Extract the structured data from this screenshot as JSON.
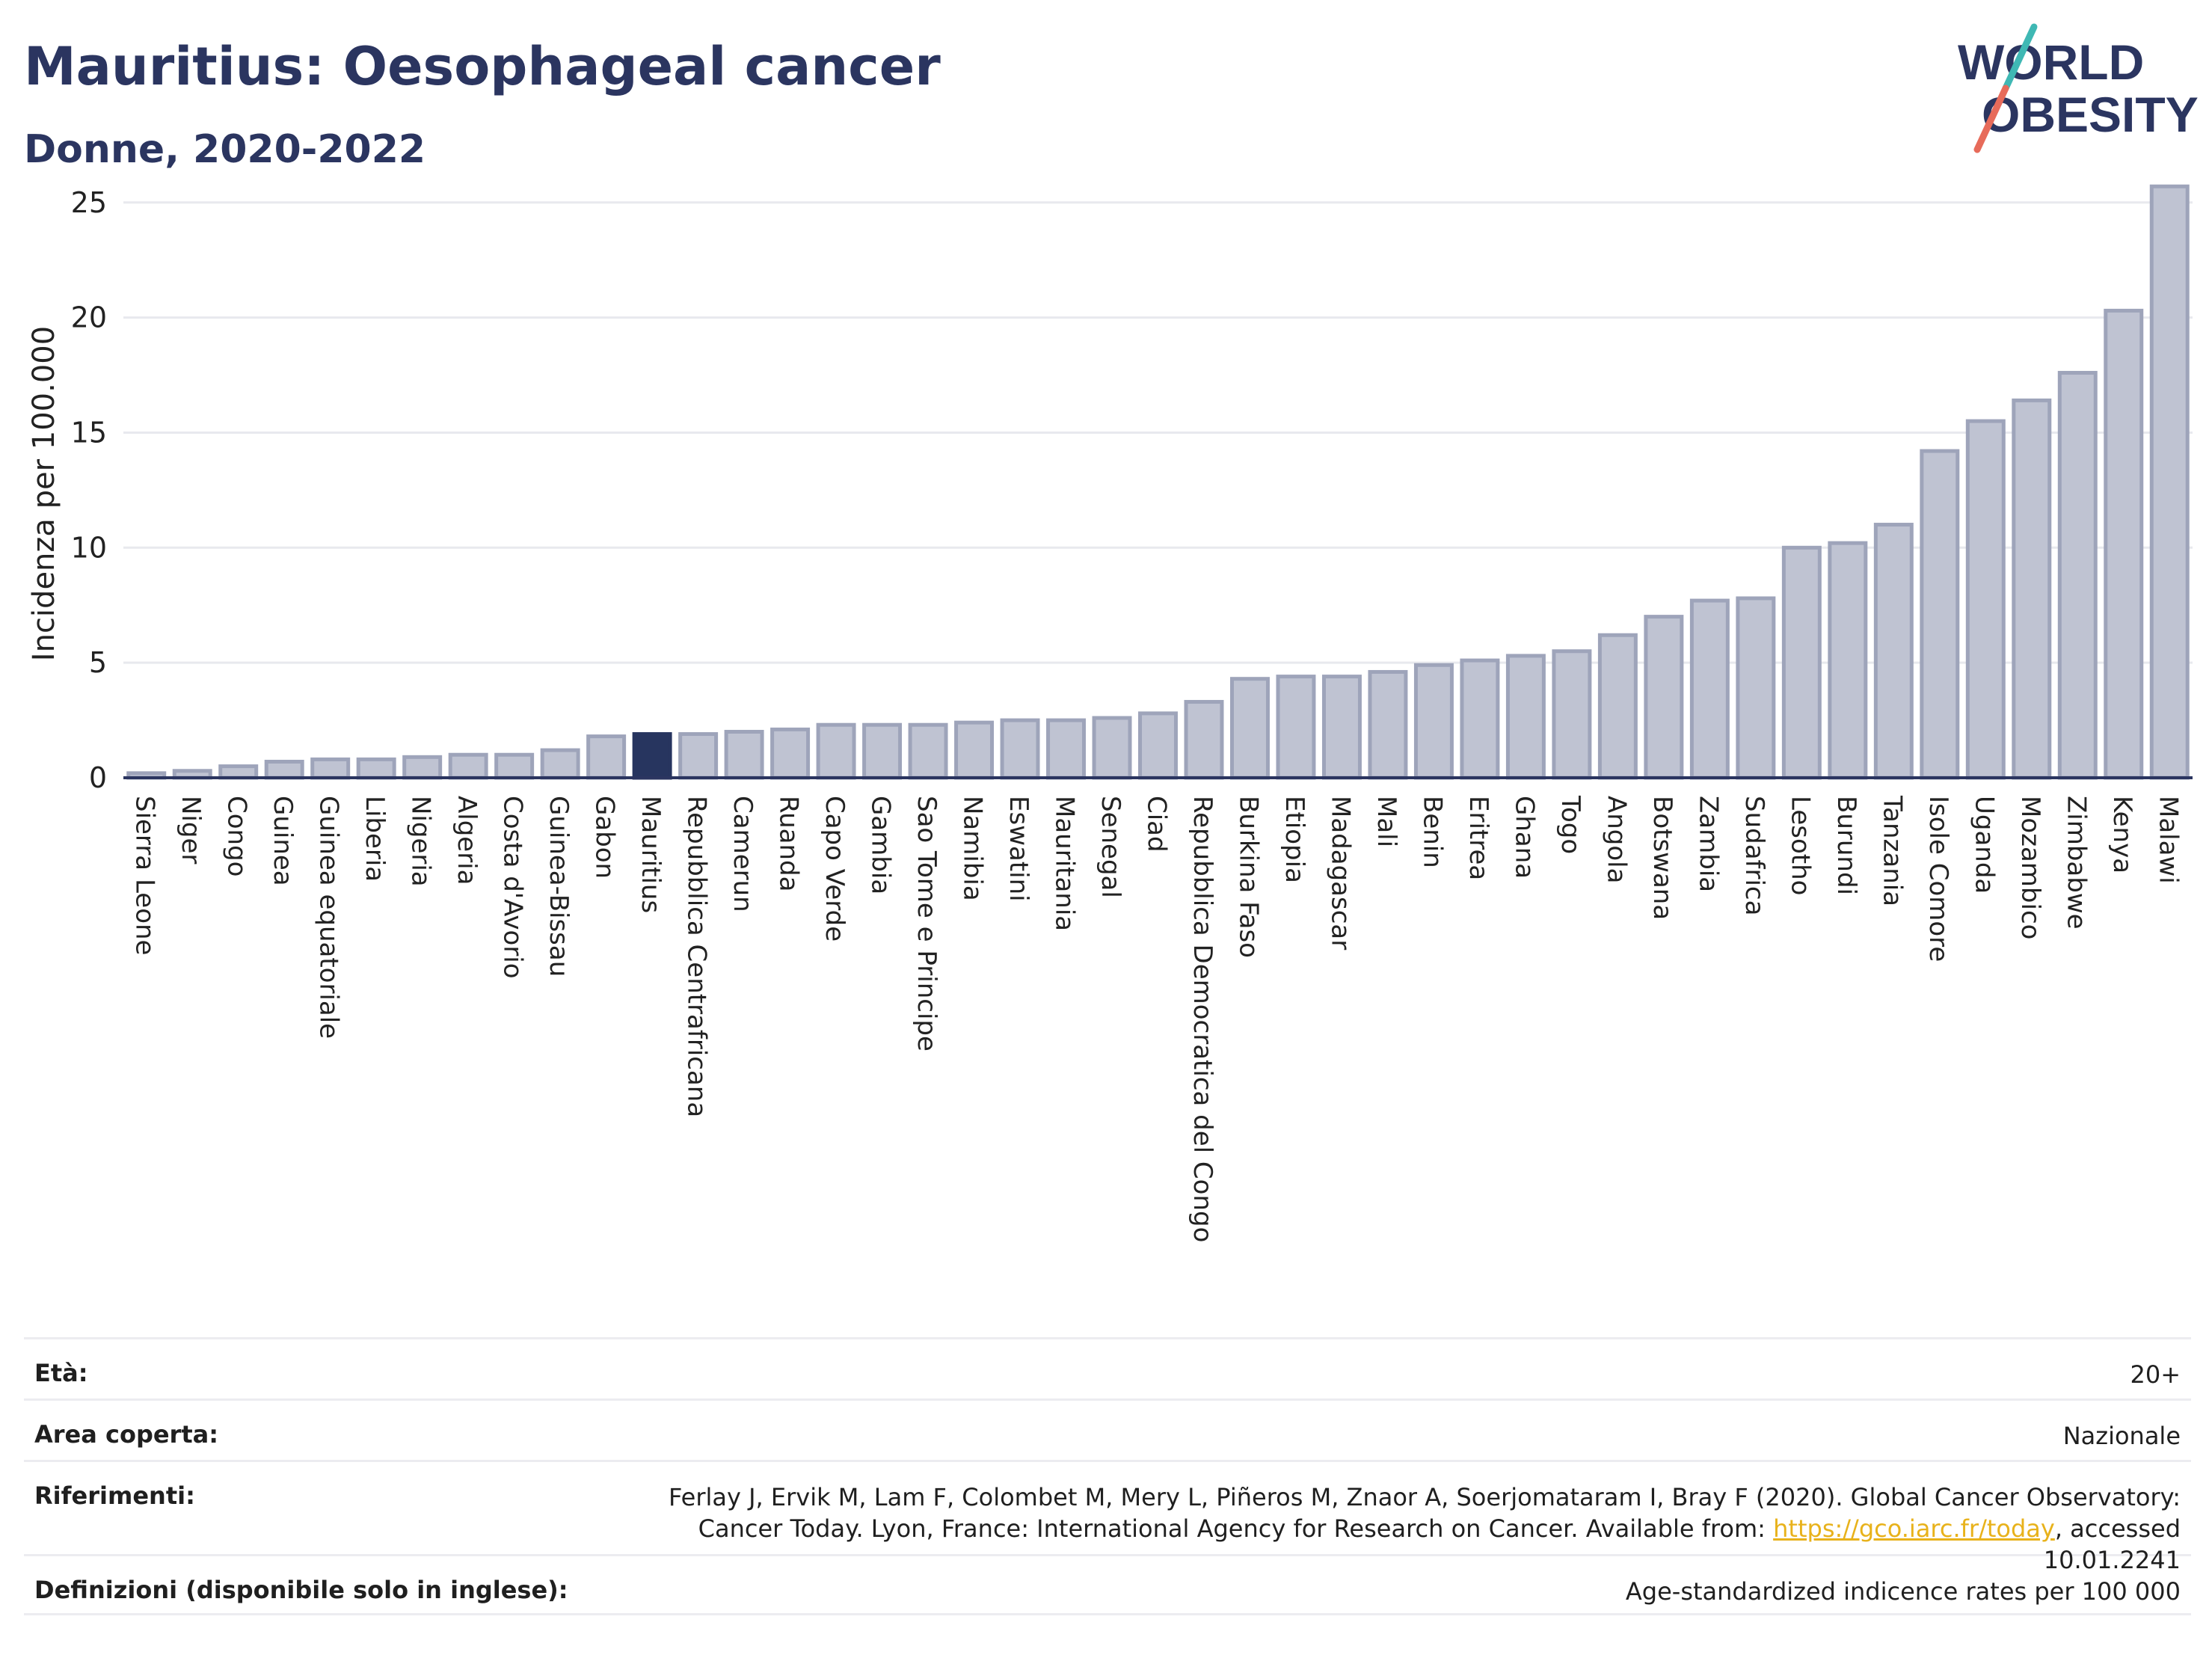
{
  "header": {
    "title": "Mauritius: Oesophageal cancer",
    "subtitle": "Donne, 2020-2022",
    "logo_line1": "WORLD",
    "logo_line2": "OBESITY"
  },
  "colors": {
    "bar": "#bfc3d2",
    "bar_stroke": "#9ea4ba",
    "highlight": "#27355f",
    "title": "#2b3560",
    "logo_teal": "#3fb8b4",
    "logo_coral": "#e76b5a"
  },
  "chart_data": {
    "type": "bar",
    "ylabel": "Incidenza per 100.000",
    "ylim": [
      0,
      26
    ],
    "yticks": [
      0,
      5,
      10,
      15,
      20,
      25
    ],
    "highlight": "Mauritius",
    "categories": [
      "Sierra Leone",
      "Niger",
      "Congo",
      "Guinea",
      "Guinea equatoriale",
      "Liberia",
      "Nigeria",
      "Algeria",
      "Costa d'Avorio",
      "Guinea-Bissau",
      "Gabon",
      "Mauritius",
      "Repubblica Centrafricana",
      "Camerun",
      "Ruanda",
      "Capo Verde",
      "Gambia",
      "Sao Tome e Principe",
      "Namibia",
      "Eswatini",
      "Mauritania",
      "Senegal",
      "Ciad",
      "Repubblica Democratica del Congo",
      "Burkina Faso",
      "Etiopia",
      "Madagascar",
      "Mali",
      "Benin",
      "Eritrea",
      "Ghana",
      "Togo",
      "Angola",
      "Botswana",
      "Zambia",
      "Sudafrica",
      "Lesotho",
      "Burundi",
      "Tanzania",
      "Isole Comore",
      "Uganda",
      "Mozambico",
      "Zimbabwe",
      "Kenya",
      "Malawi"
    ],
    "values": [
      0.2,
      0.3,
      0.5,
      0.7,
      0.8,
      0.8,
      0.9,
      1.0,
      1.0,
      1.2,
      1.8,
      1.9,
      1.9,
      2.0,
      2.1,
      2.3,
      2.3,
      2.3,
      2.4,
      2.5,
      2.5,
      2.6,
      2.8,
      3.3,
      4.3,
      4.4,
      4.4,
      4.6,
      4.9,
      5.1,
      5.3,
      5.5,
      6.2,
      7.0,
      7.7,
      7.8,
      10.0,
      10.2,
      11.0,
      14.2,
      15.5,
      16.4,
      17.6,
      20.3,
      25.7
    ]
  },
  "meta": [
    {
      "key": "Età:",
      "value": "20+"
    },
    {
      "key": "Area coperta:",
      "value": "Nazionale"
    },
    {
      "key": "Riferimenti:",
      "value_before": "Ferlay J, Ervik M, Lam F, Colombet M, Mery L, Piñeros M, Znaor A, Soerjomataram I, Bray F (2020). Global Cancer Observatory: Cancer Today. Lyon, France: International Agency for Research on Cancer. Available from: ",
      "link": "https://gco.iarc.fr/today",
      "value_after": ", accessed 10.01.2241"
    },
    {
      "key": "Definizioni (disponibile solo in inglese):",
      "value": "Age-standardized indicence rates per 100 000"
    }
  ]
}
